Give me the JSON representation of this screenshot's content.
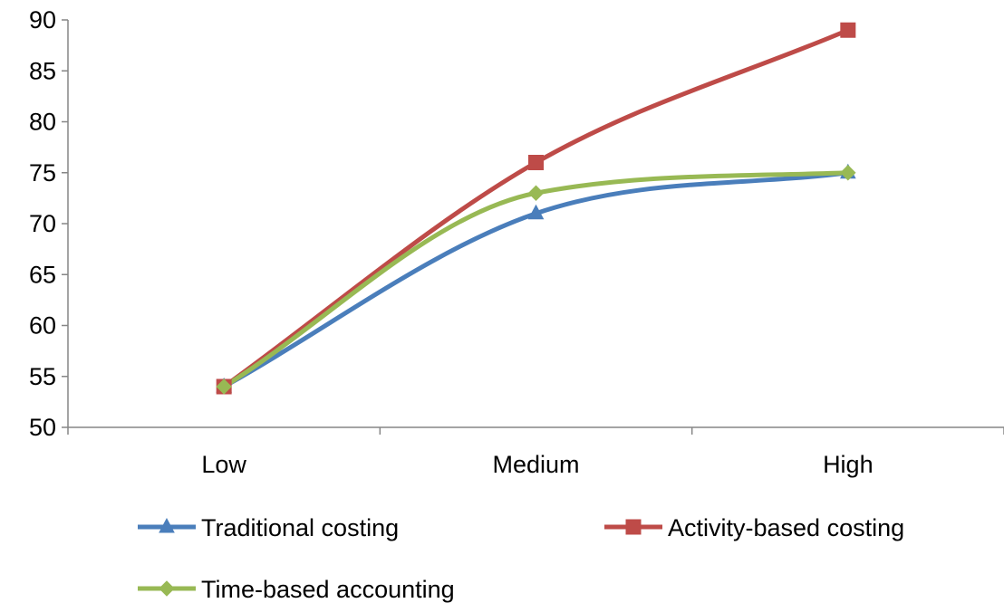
{
  "chart_data": {
    "type": "line",
    "title": "",
    "xlabel": "",
    "ylabel": "",
    "categories": [
      "Low",
      "Medium",
      "High"
    ],
    "ylim": [
      50,
      90
    ],
    "yticks": [
      50,
      55,
      60,
      65,
      70,
      75,
      80,
      85,
      90
    ],
    "grid": false,
    "smooth": true,
    "legend_position": "bottom",
    "series": [
      {
        "name": "Traditional costing",
        "values": [
          54,
          71,
          75
        ],
        "color": "#4a7ebb",
        "marker": "triangle"
      },
      {
        "name": "Activity-based costing",
        "values": [
          54,
          76,
          89
        ],
        "color": "#be4b48",
        "marker": "square"
      },
      {
        "name": "Time-based accounting",
        "values": [
          54,
          73,
          75
        ],
        "color": "#98b954",
        "marker": "diamond"
      }
    ]
  }
}
